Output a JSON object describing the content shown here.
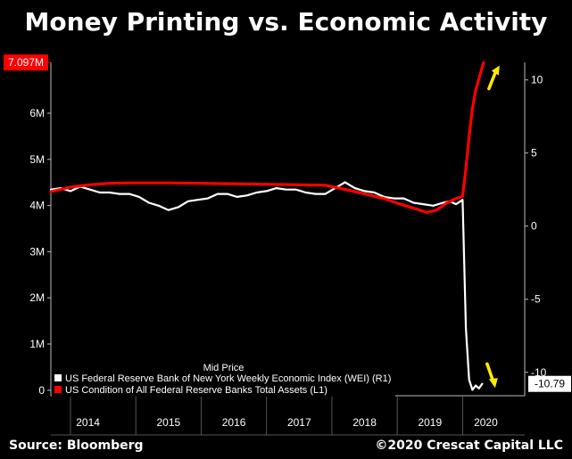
{
  "header": {
    "title": "Money Printing vs. Economic Activity"
  },
  "footer": {
    "source": "Source: Bloomberg",
    "copyright": "©2020 Crescat Capital LLC"
  },
  "chart_data": {
    "type": "line",
    "title": "Money Printing vs. Economic Activity",
    "legend_title": "Mid Price",
    "legend_position": "bottom-left",
    "x_range": [
      2013.7,
      2020.95
    ],
    "x_ticks": [
      "2014",
      "2015",
      "2016",
      "2017",
      "2018",
      "2019",
      "2020"
    ],
    "left_axis": {
      "range": [
        -0.12,
        7.1
      ],
      "ticks": [
        "0",
        "1M",
        "2M",
        "3M",
        "4M",
        "5M",
        "6M"
      ],
      "tick_values": [
        0,
        1,
        2,
        3,
        4,
        5,
        6
      ]
    },
    "right_axis": {
      "range": [
        -11.6,
        11.2
      ],
      "ticks": [
        "-10",
        "-5",
        "0",
        "5",
        "10"
      ],
      "tick_values": [
        -10,
        -5,
        0,
        5,
        10
      ]
    },
    "left_last_value": {
      "label": "7.097M",
      "value": 7.097,
      "color": "#ff0000"
    },
    "right_last_value": {
      "label": "-10.79",
      "value": -10.79,
      "color": "#ffffff"
    },
    "arrows": [
      {
        "direction": "up",
        "x": 2020.32,
        "y_left": 6.8,
        "color": "#ffea00"
      },
      {
        "direction": "down",
        "x": 2020.32,
        "y_left": 0.3,
        "color": "#ffea00"
      }
    ],
    "series": [
      {
        "name": "US Federal Reserve Bank of New York Weekly Economic Index (WEI)  (R1)",
        "axis": "right",
        "color": "#ffffff",
        "x": [
          2013.7,
          2013.85,
          2014.0,
          2014.15,
          2014.3,
          2014.45,
          2014.6,
          2014.75,
          2014.9,
          2015.05,
          2015.2,
          2015.35,
          2015.5,
          2015.65,
          2015.8,
          2015.95,
          2016.1,
          2016.25,
          2016.4,
          2016.55,
          2016.7,
          2016.85,
          2017.0,
          2017.15,
          2017.3,
          2017.45,
          2017.6,
          2017.75,
          2017.9,
          2018.05,
          2018.2,
          2018.35,
          2018.5,
          2018.65,
          2018.8,
          2018.95,
          2019.1,
          2019.25,
          2019.4,
          2019.55,
          2019.7,
          2019.8,
          2019.9,
          2020.0,
          2020.05,
          2020.1,
          2020.15,
          2020.2,
          2020.25,
          2020.3
        ],
        "values": [
          2.5,
          2.6,
          2.4,
          2.7,
          2.5,
          2.3,
          2.3,
          2.2,
          2.2,
          2.0,
          1.6,
          1.4,
          1.1,
          1.3,
          1.7,
          1.8,
          1.9,
          2.2,
          2.2,
          2.0,
          2.1,
          2.3,
          2.4,
          2.6,
          2.5,
          2.5,
          2.3,
          2.2,
          2.2,
          2.6,
          3.0,
          2.6,
          2.4,
          2.3,
          2.0,
          1.9,
          1.9,
          1.6,
          1.5,
          1.4,
          1.6,
          1.7,
          1.5,
          1.8,
          -7.0,
          -10.5,
          -11.2,
          -10.9,
          -11.1,
          -10.79
        ]
      },
      {
        "name": "US Condition of All Federal Reserve Banks Total Assets  (L1)",
        "axis": "left",
        "color": "#ff0000",
        "x": [
          2013.7,
          2014.0,
          2014.3,
          2014.6,
          2014.9,
          2015.5,
          2016.0,
          2016.5,
          2017.0,
          2017.5,
          2017.9,
          2018.2,
          2018.5,
          2018.8,
          2019.0,
          2019.3,
          2019.45,
          2019.6,
          2019.75,
          2019.9,
          2020.0,
          2020.05,
          2020.1,
          2020.15,
          2020.2,
          2020.27,
          2020.32
        ],
        "values": [
          4.3,
          4.4,
          4.45,
          4.48,
          4.49,
          4.49,
          4.48,
          4.47,
          4.46,
          4.45,
          4.44,
          4.35,
          4.25,
          4.15,
          4.05,
          3.92,
          3.85,
          3.9,
          4.05,
          4.15,
          4.2,
          4.8,
          5.5,
          6.1,
          6.5,
          6.85,
          7.097
        ]
      }
    ]
  }
}
